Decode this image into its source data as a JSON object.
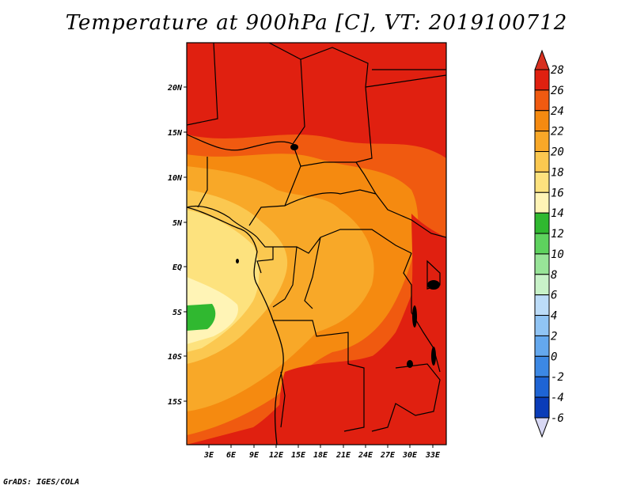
{
  "title": "Temperature at 900hPa [C], VT: 2019100712",
  "credit": "GrADS: IGES/COLA",
  "lat_labels": [
    "20N",
    "15N",
    "10N",
    "5N",
    "EQ",
    "5S",
    "10S",
    "15S"
  ],
  "lon_labels": [
    "3E",
    "6E",
    "9E",
    "12E",
    "15E",
    "18E",
    "21E",
    "24E",
    "27E",
    "30E",
    "33E"
  ],
  "colorbar": {
    "labels": [
      "28",
      "26",
      "24",
      "22",
      "20",
      "18",
      "16",
      "14",
      "12",
      "10",
      "8",
      "6",
      "4",
      "2",
      "0",
      "-2",
      "-4",
      "-6"
    ],
    "colors": {
      "top_arrow": "#d83020",
      "c26_28": "#e02010",
      "c24_26": "#f05a10",
      "c22_24": "#f58a10",
      "c20_22": "#f8a828",
      "c18_20": "#fbc850",
      "c16_18": "#fde27e",
      "c14_16": "#fff4b6",
      "c12_14": "#30b830",
      "c10_12": "#5ed25e",
      "c8_10": "#98e498",
      "c6_8": "#c8f2c8",
      "c4_6": "#bcdcf8",
      "c2_4": "#90c4f4",
      "c0_2": "#64a8ee",
      "cm2_0": "#3c88e4",
      "cm4_m2": "#1e64d4",
      "cm6_m4": "#0a3cb8",
      "bottom_arrow": "#d8d8f4"
    }
  },
  "regions": {
    "sahel_hot": "#e02010",
    "warm_orange": "#f05a10",
    "orange": "#f58a10",
    "light_orange": "#f8a828",
    "gold": "#fbc850",
    "pale_yellow": "#fde27e",
    "cream": "#fff4b6",
    "green": "#30b830"
  }
}
